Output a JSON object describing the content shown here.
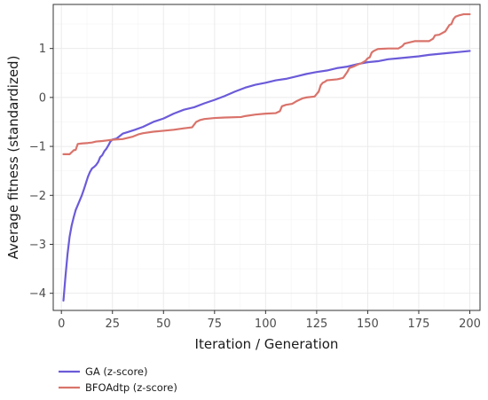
{
  "chart_data": {
    "type": "line",
    "title": "",
    "xlabel": "Iteration / Generation",
    "ylabel": "Average fitness (standardized)",
    "xlim": [
      -4,
      205
    ],
    "ylim": [
      -4.35,
      1.9
    ],
    "xticks": [
      0,
      25,
      50,
      75,
      100,
      125,
      150,
      175,
      200
    ],
    "yticks": [
      -4,
      -3,
      -2,
      -1,
      0,
      1
    ],
    "grid": true,
    "legend_position": "bottom-left",
    "series": [
      {
        "name": "GA (z-score)",
        "color": "#6b5bd9",
        "points": [
          [
            1,
            -4.15
          ],
          [
            2,
            -3.65
          ],
          [
            3,
            -3.2
          ],
          [
            4,
            -2.85
          ],
          [
            5,
            -2.62
          ],
          [
            6,
            -2.45
          ],
          [
            7,
            -2.3
          ],
          [
            8,
            -2.2
          ],
          [
            9,
            -2.1
          ],
          [
            10,
            -2.0
          ],
          [
            11,
            -1.88
          ],
          [
            12,
            -1.75
          ],
          [
            13,
            -1.62
          ],
          [
            14,
            -1.52
          ],
          [
            15,
            -1.45
          ],
          [
            16,
            -1.42
          ],
          [
            17,
            -1.38
          ],
          [
            18,
            -1.32
          ],
          [
            19,
            -1.22
          ],
          [
            20,
            -1.18
          ],
          [
            21,
            -1.1
          ],
          [
            22,
            -1.05
          ],
          [
            23,
            -0.98
          ],
          [
            24,
            -0.9
          ],
          [
            25,
            -0.86
          ],
          [
            27,
            -0.84
          ],
          [
            30,
            -0.74
          ],
          [
            33,
            -0.7
          ],
          [
            36,
            -0.66
          ],
          [
            40,
            -0.6
          ],
          [
            45,
            -0.5
          ],
          [
            50,
            -0.43
          ],
          [
            55,
            -0.33
          ],
          [
            60,
            -0.25
          ],
          [
            65,
            -0.2
          ],
          [
            70,
            -0.12
          ],
          [
            75,
            -0.05
          ],
          [
            80,
            0.03
          ],
          [
            85,
            0.12
          ],
          [
            90,
            0.2
          ],
          [
            95,
            0.26
          ],
          [
            100,
            0.3
          ],
          [
            105,
            0.35
          ],
          [
            110,
            0.38
          ],
          [
            115,
            0.43
          ],
          [
            120,
            0.48
          ],
          [
            125,
            0.52
          ],
          [
            130,
            0.55
          ],
          [
            135,
            0.6
          ],
          [
            140,
            0.63
          ],
          [
            145,
            0.68
          ],
          [
            150,
            0.72
          ],
          [
            155,
            0.74
          ],
          [
            160,
            0.78
          ],
          [
            165,
            0.8
          ],
          [
            170,
            0.82
          ],
          [
            175,
            0.84
          ],
          [
            180,
            0.87
          ],
          [
            185,
            0.89
          ],
          [
            190,
            0.91
          ],
          [
            195,
            0.93
          ],
          [
            200,
            0.95
          ]
        ]
      },
      {
        "name": "BFOAdtp (z-score)",
        "color": "#d9736b",
        "points": [
          [
            1,
            -1.16
          ],
          [
            4,
            -1.16
          ],
          [
            6,
            -1.08
          ],
          [
            7,
            -1.07
          ],
          [
            8,
            -0.95
          ],
          [
            10,
            -0.94
          ],
          [
            13,
            -0.93
          ],
          [
            15,
            -0.92
          ],
          [
            17,
            -0.9
          ],
          [
            20,
            -0.89
          ],
          [
            22,
            -0.88
          ],
          [
            24,
            -0.87
          ],
          [
            26,
            -0.86
          ],
          [
            30,
            -0.85
          ],
          [
            35,
            -0.8
          ],
          [
            38,
            -0.75
          ],
          [
            40,
            -0.73
          ],
          [
            45,
            -0.7
          ],
          [
            50,
            -0.68
          ],
          [
            55,
            -0.66
          ],
          [
            60,
            -0.63
          ],
          [
            64,
            -0.61
          ],
          [
            66,
            -0.5
          ],
          [
            68,
            -0.46
          ],
          [
            70,
            -0.44
          ],
          [
            75,
            -0.42
          ],
          [
            80,
            -0.41
          ],
          [
            88,
            -0.4
          ],
          [
            90,
            -0.38
          ],
          [
            95,
            -0.35
          ],
          [
            100,
            -0.33
          ],
          [
            105,
            -0.32
          ],
          [
            107,
            -0.28
          ],
          [
            108,
            -0.18
          ],
          [
            110,
            -0.15
          ],
          [
            113,
            -0.13
          ],
          [
            115,
            -0.08
          ],
          [
            118,
            -0.02
          ],
          [
            120,
            0.0
          ],
          [
            124,
            0.02
          ],
          [
            126,
            0.12
          ],
          [
            127,
            0.25
          ],
          [
            128,
            0.3
          ],
          [
            129,
            0.32
          ],
          [
            130,
            0.35
          ],
          [
            135,
            0.37
          ],
          [
            138,
            0.4
          ],
          [
            140,
            0.52
          ],
          [
            141,
            0.6
          ],
          [
            143,
            0.63
          ],
          [
            145,
            0.67
          ],
          [
            147,
            0.7
          ],
          [
            149,
            0.75
          ],
          [
            150,
            0.8
          ],
          [
            151,
            0.82
          ],
          [
            152,
            0.92
          ],
          [
            153,
            0.95
          ],
          [
            155,
            0.99
          ],
          [
            160,
            1.0
          ],
          [
            165,
            1.0
          ],
          [
            167,
            1.05
          ],
          [
            168,
            1.1
          ],
          [
            170,
            1.12
          ],
          [
            173,
            1.15
          ],
          [
            180,
            1.15
          ],
          [
            182,
            1.2
          ],
          [
            183,
            1.27
          ],
          [
            185,
            1.28
          ],
          [
            188,
            1.35
          ],
          [
            190,
            1.48
          ],
          [
            191,
            1.5
          ],
          [
            192,
            1.6
          ],
          [
            193,
            1.65
          ],
          [
            195,
            1.68
          ],
          [
            197,
            1.7
          ],
          [
            200,
            1.7
          ]
        ]
      }
    ]
  }
}
